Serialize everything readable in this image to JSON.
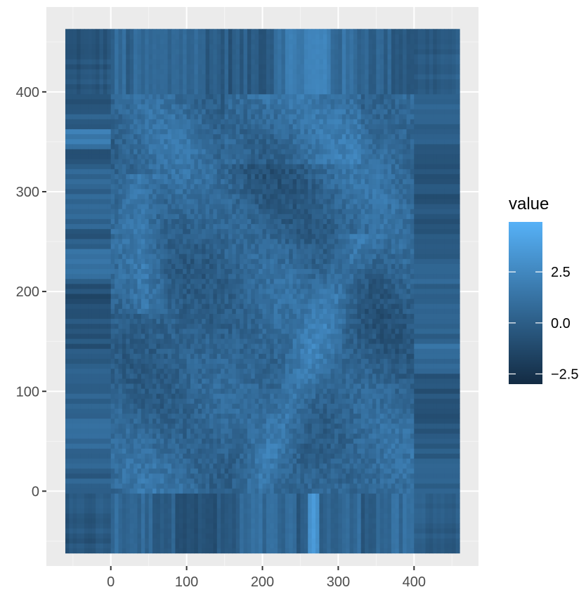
{
  "chart_data": {
    "type": "heatmap",
    "title": "",
    "xlabel": "",
    "ylabel": "",
    "x_ticks": [
      0,
      100,
      200,
      300,
      400
    ],
    "y_ticks": [
      0,
      100,
      200,
      300,
      400
    ],
    "xlim": [
      -85,
      485
    ],
    "ylim": [
      -75,
      485
    ],
    "raster_x_extent": [
      -60,
      460
    ],
    "raster_y_extent": [
      -62,
      460
    ],
    "valid_region": {
      "x": [
        0,
        400
      ],
      "y": [
        0,
        400
      ]
    },
    "value_range": [
      -3.0,
      5.0
    ],
    "grid": true,
    "panel_background": "#ebebeb",
    "colorscale": {
      "low": "#132b43",
      "high": "#56b1f7"
    },
    "legend": {
      "title": "value",
      "position": "right",
      "ticks": [
        {
          "value": 2.5,
          "label": "2.5"
        },
        {
          "value": 0.0,
          "label": "0.0"
        },
        {
          "value": -2.5,
          "label": "−2.5"
        }
      ]
    }
  }
}
